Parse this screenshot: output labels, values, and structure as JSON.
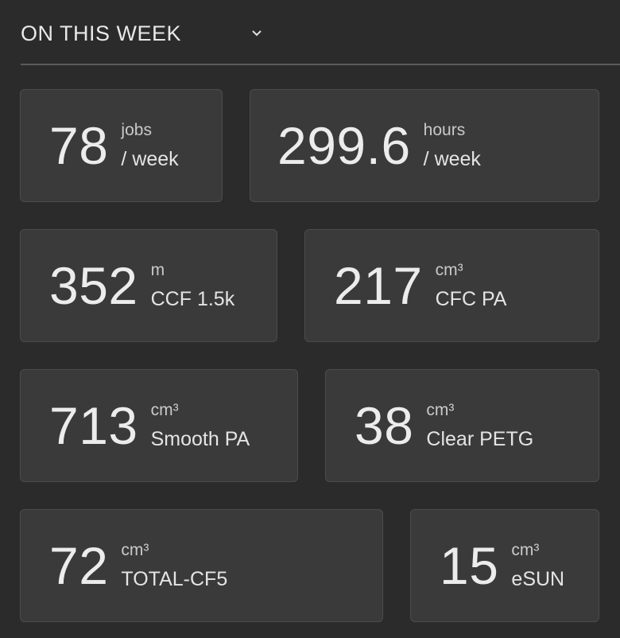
{
  "header": {
    "title": "ON THIS WEEK",
    "chevron_icon": "chevron-down-icon"
  },
  "stats": [
    {
      "value": "78",
      "unit": "jobs",
      "label": "/ week"
    },
    {
      "value": "299.6",
      "unit": "hours",
      "label": "/ week"
    },
    {
      "value": "352",
      "unit": "m",
      "label": "CCF 1.5k"
    },
    {
      "value": "217",
      "unit": "cm³",
      "label": "CFC PA"
    },
    {
      "value": "713",
      "unit": "cm³",
      "label": "Smooth PA"
    },
    {
      "value": "38",
      "unit": "cm³",
      "label": "Clear PETG"
    },
    {
      "value": "72",
      "unit": "cm³",
      "label": "TOTAL-CF5"
    },
    {
      "value": "15",
      "unit": "cm³",
      "label": "eSUN"
    }
  ],
  "colors": {
    "background": "#2b2b2b",
    "card": "#3a3a3a",
    "card_border": "#4c4c4c",
    "text": "#ececec"
  }
}
